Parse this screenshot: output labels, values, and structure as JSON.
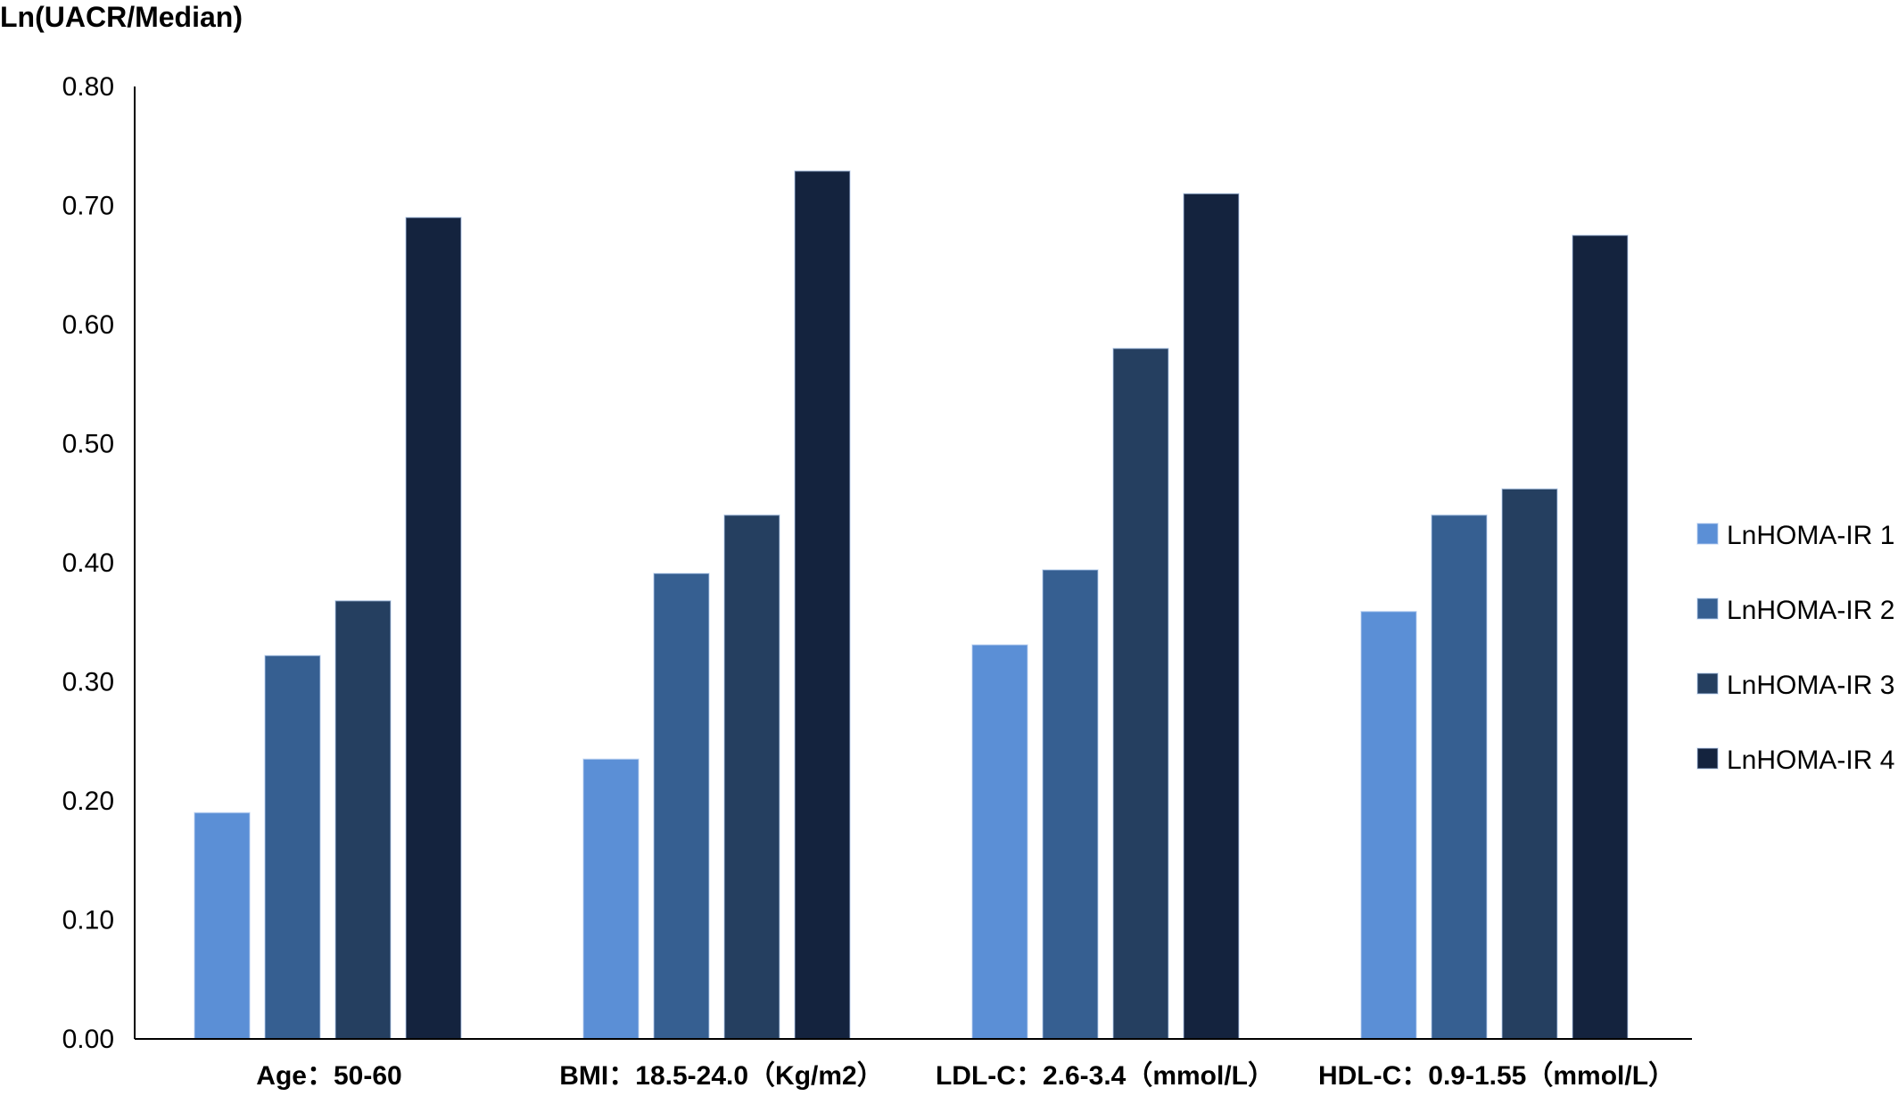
{
  "chart_data": {
    "type": "bar",
    "title": "",
    "ylabel": "Ln(UACR/Median)",
    "xlabel": "",
    "ylim": [
      0,
      0.8
    ],
    "yticks": [
      "0.00",
      "0.10",
      "0.20",
      "0.30",
      "0.40",
      "0.50",
      "0.60",
      "0.70",
      "0.80"
    ],
    "categories": [
      "Age：50-60",
      "BMI：18.5-24.0（Kg/m2）",
      "LDL-C：2.6-3.4（mmol/L）",
      "HDL-C：0.9-1.55（mmol/L）"
    ],
    "series": [
      {
        "name": "LnHOMA-IR 1",
        "color": "#5b8fd6",
        "values": [
          0.19,
          0.235,
          0.331,
          0.359
        ]
      },
      {
        "name": "LnHOMA-IR 2",
        "color": "#365f91",
        "values": [
          0.322,
          0.391,
          0.394,
          0.44
        ]
      },
      {
        "name": "LnHOMA-IR 3",
        "color": "#253f60",
        "values": [
          0.368,
          0.44,
          0.58,
          0.462
        ]
      },
      {
        "name": "LnHOMA-IR 4",
        "color": "#14233e",
        "values": [
          0.69,
          0.729,
          0.71,
          0.675
        ]
      }
    ],
    "grid": false,
    "legend_position": "right"
  }
}
